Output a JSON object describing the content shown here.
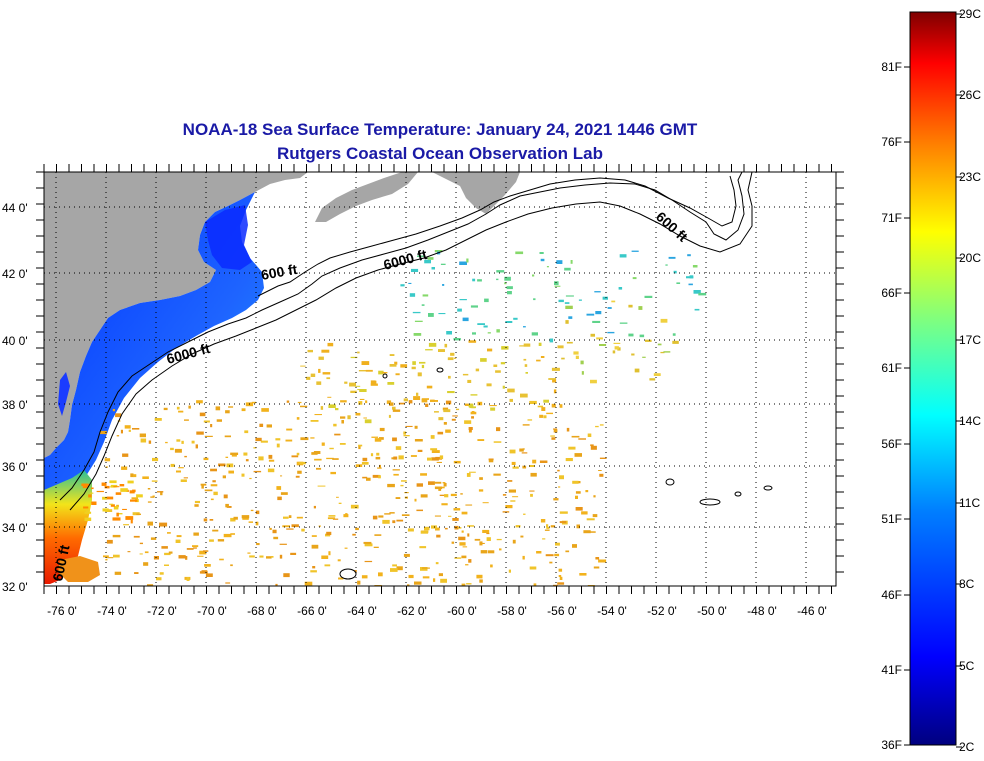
{
  "title": {
    "line1": "NOAA-18 Sea Surface Temperature:  January 24, 2021 1446 GMT",
    "line2": "Rutgers Coastal Ocean Observation Lab"
  },
  "map": {
    "lon_labels": [
      "-76 0'",
      "-74 0'",
      "-72 0'",
      "-70 0'",
      "-68 0'",
      "-66 0'",
      "-64 0'",
      "-62 0'",
      "-60 0'",
      "-58 0'",
      "-56 0'",
      "-54 0'",
      "-52 0'",
      "-50 0'",
      "-48 0'",
      "-46 0'"
    ],
    "lat_labels": [
      "44 0'",
      "42 0'",
      "40 0'",
      "38 0'",
      "36 0'",
      "34 0'",
      "32 0'"
    ],
    "depth_labels": [
      "600 ft",
      "6000 ft",
      "600 ft",
      "6000 ft",
      "600 ft"
    ],
    "colors": {
      "land": "#a6a6a6",
      "frame": "#000000",
      "grid": "#000000"
    }
  },
  "colorbar": {
    "celsius_labels": [
      "29C",
      "26C",
      "23C",
      "20C",
      "17C",
      "14C",
      "11C",
      "8C",
      "5C",
      "2C"
    ],
    "fahrenheit_labels": [
      "81F",
      "76F",
      "71F",
      "66F",
      "61F",
      "56F",
      "51F",
      "46F",
      "41F",
      "36F"
    ],
    "stops": [
      "#00007f",
      "#0000ff",
      "#007fff",
      "#00ffff",
      "#7fff7f",
      "#ffff00",
      "#ff7f00",
      "#ff0000",
      "#7f0000"
    ]
  }
}
